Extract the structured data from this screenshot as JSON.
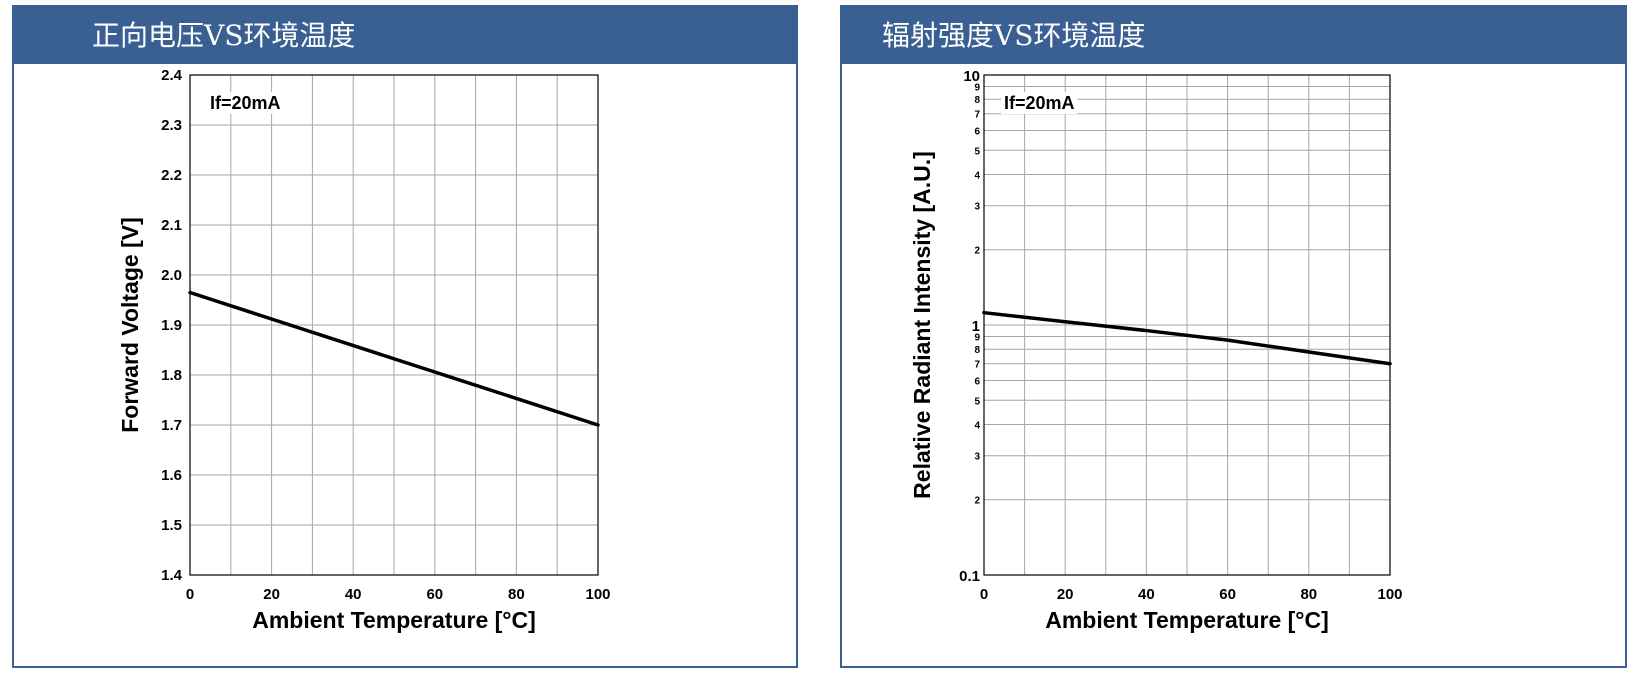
{
  "panels": [
    {
      "title": "正向电压VS环境温度"
    },
    {
      "title": "辐射强度VS环境温度"
    }
  ],
  "colors": {
    "header_bg": "#3a6093",
    "grid": "#a6a6a6",
    "line": "#000000"
  },
  "chart_data": [
    {
      "type": "line",
      "annotation": "If=20mA",
      "xlabel": "Ambient Temperature [°C]",
      "ylabel": "Forward Voltage [V]",
      "xlim": [
        0,
        100
      ],
      "ylim": [
        1.4,
        2.4
      ],
      "xscale": "linear",
      "yscale": "linear",
      "x_major_ticks": [
        0,
        20,
        40,
        60,
        80,
        100
      ],
      "x_minor_ticks": [
        10,
        30,
        50,
        70,
        90
      ],
      "y_ticks": [
        1.4,
        1.5,
        1.6,
        1.7,
        1.8,
        1.9,
        2.0,
        2.1,
        2.2,
        2.3,
        2.4
      ],
      "y_tick_labels": [
        "1.4",
        "1.5",
        "1.6",
        "1.7",
        "1.8",
        "1.9",
        "2.0",
        "2.1",
        "2.2",
        "2.3",
        "2.4"
      ],
      "grid": true,
      "series": [
        {
          "x": [
            0,
            100
          ],
          "y": [
            1.965,
            1.7
          ]
        }
      ]
    },
    {
      "type": "line",
      "annotation": "If=20mA",
      "xlabel": "Ambient Temperature [°C]",
      "ylabel": "Relative Radiant Intensity [A.U.]",
      "xlim": [
        0,
        100
      ],
      "ylim": [
        0.1,
        10
      ],
      "xscale": "linear",
      "yscale": "log",
      "x_major_ticks": [
        0,
        20,
        40,
        60,
        80,
        100
      ],
      "x_minor_ticks": [
        10,
        30,
        50,
        70,
        90
      ],
      "y_major_ticks": [
        0.1,
        1,
        10
      ],
      "y_major_labels": [
        "0.1",
        "1",
        "10"
      ],
      "y_minor_ticks": [
        0.2,
        0.3,
        0.4,
        0.5,
        0.6,
        0.7,
        0.8,
        0.9,
        2,
        3,
        4,
        5,
        6,
        7,
        8,
        9
      ],
      "y_minor_labels": [
        "2",
        "3",
        "4",
        "5",
        "6",
        "7",
        "8",
        "9",
        "2",
        "3",
        "4",
        "5",
        "6",
        "7",
        "8",
        "9"
      ],
      "grid": true,
      "series": [
        {
          "x": [
            0,
            20,
            40,
            60,
            80,
            100
          ],
          "y": [
            1.12,
            1.03,
            0.95,
            0.87,
            0.78,
            0.7
          ]
        }
      ]
    }
  ]
}
